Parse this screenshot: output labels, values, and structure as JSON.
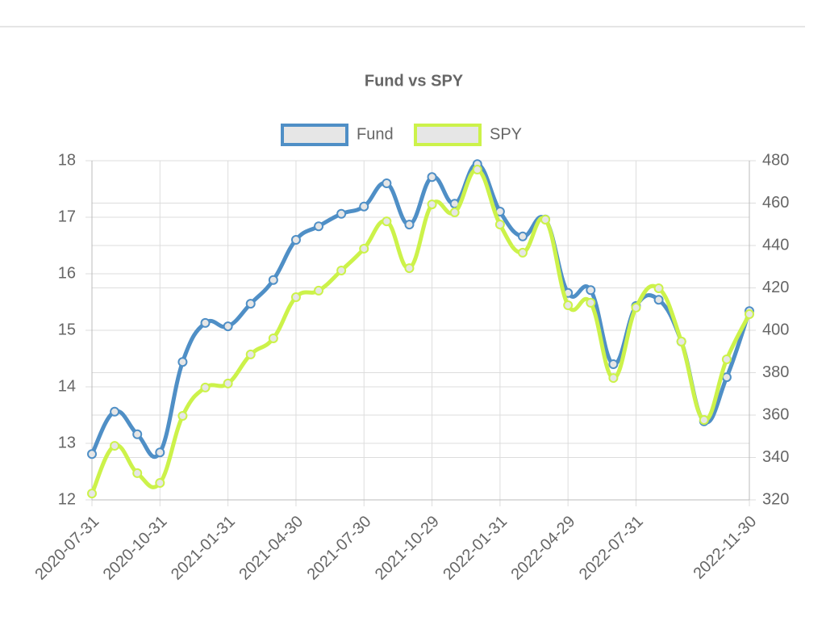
{
  "chart_data": {
    "type": "line",
    "title": "Fund vs SPY",
    "categories": [
      "2020-07-31",
      null,
      null,
      "2020-10-31",
      null,
      null,
      "2021-01-31",
      null,
      null,
      "2021-04-30",
      null,
      null,
      "2021-07-30",
      null,
      null,
      "2021-10-29",
      null,
      null,
      "2022-01-31",
      null,
      null,
      "2022-04-29",
      null,
      null,
      "2022-07-31",
      null,
      null,
      null,
      null,
      "2022-11-30"
    ],
    "series": [
      {
        "name": "Fund",
        "color": "#4f8fc6",
        "axis": "y",
        "values": [
          12.81,
          13.56,
          13.16,
          12.84,
          14.44,
          15.13,
          15.07,
          15.47,
          15.89,
          16.6,
          16.84,
          17.06,
          17.19,
          17.6,
          16.87,
          17.71,
          17.24,
          17.94,
          17.1,
          16.66,
          16.96,
          15.66,
          15.71,
          14.4,
          15.43,
          15.54,
          14.8,
          13.39,
          14.17,
          15.34
        ]
      },
      {
        "name": "SPY",
        "color": "#ccf24a",
        "axis": "y2",
        "values": [
          323,
          345.5,
          332.6,
          328,
          359.6,
          373,
          374.9,
          388.6,
          396.2,
          415.6,
          418.7,
          428.2,
          438.5,
          451.4,
          429.3,
          459.4,
          455.6,
          475.8,
          449.9,
          436.6,
          452.2,
          411.8,
          413,
          377.5,
          410.7,
          419.8,
          394.7,
          357.7,
          386.3,
          407.6
        ]
      }
    ],
    "ylim": [
      12,
      18
    ],
    "yticks": [
      12,
      13,
      14,
      15,
      16,
      17,
      18
    ],
    "y2lim": [
      320,
      480
    ],
    "y2ticks": [
      320,
      340,
      360,
      380,
      400,
      420,
      440,
      460,
      480
    ],
    "grid": true,
    "legend": "top"
  }
}
